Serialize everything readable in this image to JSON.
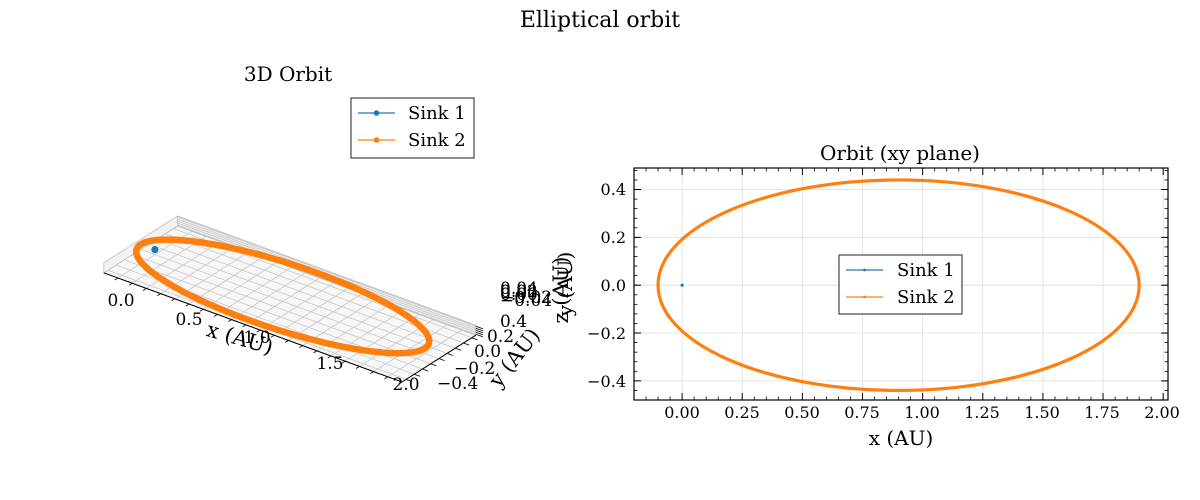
{
  "figure": {
    "suptitle": "Elliptical orbit"
  },
  "colors": {
    "sink1": "#1f77b4",
    "sink2": "#ff7f0e",
    "grid": "#dddddd"
  },
  "chart_data": [
    {
      "type": "line3d",
      "title": "3D Orbit",
      "xlabel": "x (AU)",
      "ylabel": "y (AU)",
      "zlabel": "z (AU)",
      "x_ticks": [
        "0.0",
        "0.5",
        "1.0",
        "1.5",
        "2.0"
      ],
      "y_ticks": [
        "−0.4",
        "−0.2",
        "0.0",
        "0.2",
        "0.4"
      ],
      "z_ticks": [
        "−0.04",
        "−0.02",
        "0.00",
        "0.02",
        "0.04"
      ],
      "xlim": [
        -0.1,
        2.0
      ],
      "ylim": [
        -0.45,
        0.45
      ],
      "zlim": [
        -0.05,
        0.05
      ],
      "grid": true,
      "legend": {
        "placement": "upper-right",
        "entries": [
          "Sink 1",
          "Sink 2"
        ]
      },
      "series": [
        {
          "name": "Sink 1",
          "orbit": {
            "center": [
              0.0,
              0.0
            ],
            "semi_axes": [
              0.0,
              0.0
            ]
          }
        },
        {
          "name": "Sink 2",
          "orbit": {
            "center": [
              0.9,
              0.0
            ],
            "semi_axes": [
              1.0,
              0.44
            ]
          }
        }
      ]
    },
    {
      "type": "line",
      "title": "Orbit (xy plane)",
      "xlabel": "x (AU)",
      "ylabel": "y (AU)",
      "x_ticks": [
        "0.00",
        "0.25",
        "0.50",
        "0.75",
        "1.00",
        "1.25",
        "1.50",
        "1.75",
        "2.00"
      ],
      "y_ticks": [
        "−0.4",
        "−0.2",
        "0.0",
        "0.2",
        "0.4"
      ],
      "xlim": [
        -0.2,
        2.02
      ],
      "ylim": [
        -0.48,
        0.49
      ],
      "grid": true,
      "legend": {
        "placement": "center",
        "entries": [
          "Sink 1",
          "Sink 2"
        ]
      },
      "series": [
        {
          "name": "Sink 1",
          "orbit": {
            "center": [
              0.0,
              0.0
            ],
            "semi_axes": [
              0.0,
              0.0
            ]
          }
        },
        {
          "name": "Sink 2",
          "orbit": {
            "center": [
              0.9,
              0.0
            ],
            "semi_axes": [
              1.0,
              0.44
            ]
          }
        }
      ]
    }
  ]
}
